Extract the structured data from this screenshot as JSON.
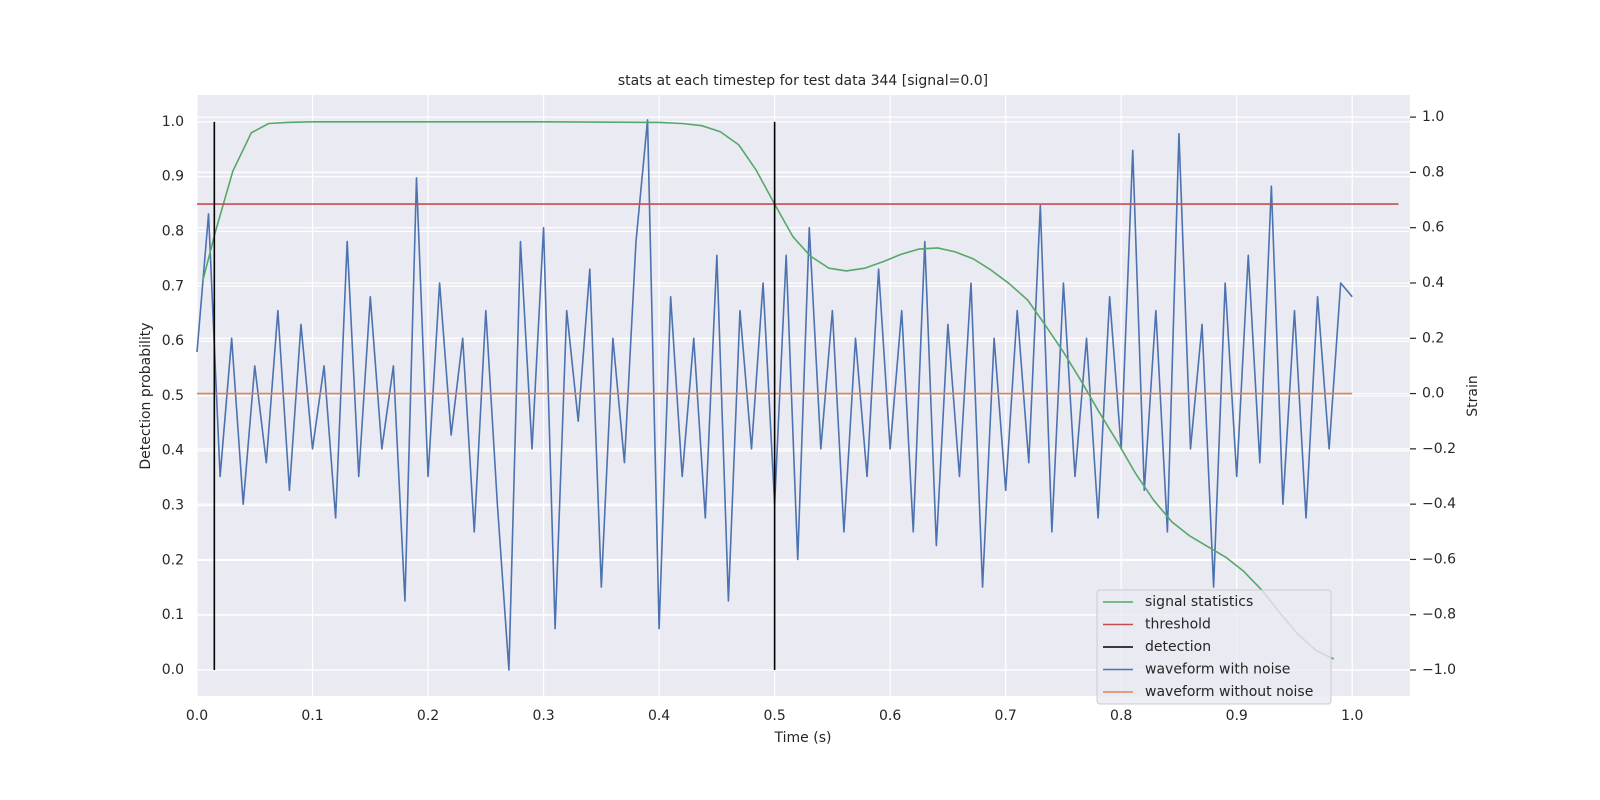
{
  "chart_data": {
    "type": "line",
    "title": "stats at each timestep for test data 344 [signal=0.0]",
    "xlabel": "Time (s)",
    "ylabel": "Detection probability",
    "y2label": "Strain",
    "xlim": [
      0,
      1.05
    ],
    "ylim": [
      -0.0475,
      1.049
    ],
    "y2lim": [
      -1.094,
      1.08
    ],
    "xticks": [
      {
        "value": 0,
        "label": "0.0"
      },
      0.1,
      0.2,
      0.3,
      0.4,
      0.5,
      0.6,
      0.7,
      0.8,
      0.9,
      {
        "value": 1,
        "label": "1.0"
      }
    ],
    "yticks": [
      {
        "value": 0,
        "label": "0.0"
      },
      0.1,
      0.2,
      0.3,
      0.4,
      0.5,
      0.6,
      0.7,
      0.8,
      0.9,
      {
        "value": 1,
        "label": "1.0"
      }
    ],
    "y2ticks": [
      {
        "value": -1,
        "label": "−1.0"
      },
      {
        "value": -0.8,
        "label": "−0.8"
      },
      {
        "value": -0.6,
        "label": "−0.6"
      },
      {
        "value": -0.4,
        "label": "−0.4"
      },
      {
        "value": -0.2,
        "label": "−0.2"
      },
      {
        "value": 0,
        "label": "0.0"
      },
      0.2,
      0.4,
      0.6,
      0.8,
      {
        "value": 1,
        "label": "1.0"
      }
    ],
    "grid": true,
    "legend": "lower right",
    "series": [
      {
        "name": "signal statistics",
        "color": "#55a868",
        "axis": "y",
        "x": [
          0.005,
          0.016,
          0.031,
          0.047,
          0.062,
          0.078,
          0.1,
          0.2,
          0.3,
          0.4,
          0.42,
          0.437,
          0.453,
          0.469,
          0.484,
          0.5,
          0.516,
          0.531,
          0.547,
          0.562,
          0.578,
          0.594,
          0.609,
          0.625,
          0.641,
          0.656,
          0.672,
          0.687,
          0.703,
          0.719,
          0.734,
          0.75,
          0.766,
          0.781,
          0.797,
          0.812,
          0.828,
          0.844,
          0.859,
          0.875,
          0.891,
          0.906,
          0.922,
          0.937,
          0.953,
          0.969,
          0.984
        ],
        "values": [
          0.71,
          0.8,
          0.91,
          0.98,
          0.997,
          0.999,
          1,
          1,
          1,
          0.999,
          0.997,
          0.993,
          0.982,
          0.958,
          0.912,
          0.85,
          0.79,
          0.755,
          0.733,
          0.728,
          0.733,
          0.745,
          0.758,
          0.768,
          0.77,
          0.763,
          0.75,
          0.73,
          0.705,
          0.675,
          0.63,
          0.58,
          0.525,
          0.47,
          0.415,
          0.36,
          0.31,
          0.27,
          0.245,
          0.225,
          0.205,
          0.18,
          0.145,
          0.105,
          0.065,
          0.035,
          0.02
        ]
      },
      {
        "name": "threshold",
        "color": "#c44e52",
        "axis": "y",
        "x": [
          0,
          1.04
        ],
        "values": [
          0.85,
          0.85
        ]
      },
      {
        "name": "detection",
        "color": "#000000",
        "axis": "y",
        "x": [
          0.015,
          0.015,
          null,
          0.5,
          0.5
        ],
        "values": [
          0,
          1,
          null,
          0,
          1
        ]
      },
      {
        "name": "waveform with noise",
        "color": "#4c72b0",
        "axis": "y2",
        "x": [
          0,
          0.01,
          0.02,
          0.03,
          0.04,
          0.05,
          0.06,
          0.07,
          0.08,
          0.09,
          0.1,
          0.11,
          0.12,
          0.13,
          0.14,
          0.15,
          0.16,
          0.17,
          0.18,
          0.19,
          0.2,
          0.21,
          0.22,
          0.23,
          0.24,
          0.25,
          0.26,
          0.27,
          0.28,
          0.29,
          0.3,
          0.31,
          0.32,
          0.33,
          0.34,
          0.35,
          0.36,
          0.37,
          0.38,
          0.39,
          0.4,
          0.41,
          0.42,
          0.43,
          0.44,
          0.45,
          0.46,
          0.47,
          0.48,
          0.49,
          0.5,
          0.51,
          0.52,
          0.53,
          0.54,
          0.55,
          0.56,
          0.57,
          0.58,
          0.59,
          0.6,
          0.61,
          0.62,
          0.63,
          0.64,
          0.65,
          0.66,
          0.67,
          0.68,
          0.69,
          0.7,
          0.71,
          0.72,
          0.73,
          0.74,
          0.75,
          0.76,
          0.77,
          0.78,
          0.79,
          0.8,
          0.81,
          0.82,
          0.83,
          0.84,
          0.85,
          0.86,
          0.87,
          0.88,
          0.89,
          0.9,
          0.91,
          0.92,
          0.93,
          0.94,
          0.95,
          0.96,
          0.97,
          0.98,
          0.99,
          1
        ],
        "values": [
          0.15,
          0.65,
          -0.3,
          0.2,
          -0.4,
          0.1,
          -0.25,
          0.3,
          -0.35,
          0.25,
          -0.2,
          0.1,
          -0.45,
          0.55,
          -0.3,
          0.35,
          -0.2,
          0.1,
          -0.75,
          0.78,
          -0.3,
          0.4,
          -0.15,
          0.2,
          -0.5,
          0.3,
          -0.4,
          -1,
          0.55,
          -0.2,
          0.6,
          -0.85,
          0.3,
          -0.1,
          0.45,
          -0.7,
          0.2,
          -0.25,
          0.55,
          0.99,
          -0.85,
          0.35,
          -0.3,
          0.2,
          -0.45,
          0.5,
          -0.75,
          0.3,
          -0.2,
          0.4,
          -0.4,
          0.5,
          -0.6,
          0.6,
          -0.2,
          0.3,
          -0.5,
          0.2,
          -0.3,
          0.45,
          -0.2,
          0.3,
          -0.5,
          0.55,
          -0.55,
          0.25,
          -0.3,
          0.4,
          -0.7,
          0.2,
          -0.35,
          0.3,
          -0.25,
          0.68,
          -0.5,
          0.4,
          -0.3,
          0.2,
          -0.45,
          0.35,
          -0.2,
          0.88,
          -0.35,
          0.3,
          -0.5,
          0.94,
          -0.2,
          0.25,
          -0.7,
          0.4,
          -0.3,
          0.5,
          -0.25,
          0.75,
          -0.4,
          0.3,
          -0.45,
          0.35,
          -0.2,
          0.4,
          0.35
        ]
      },
      {
        "name": "waveform without noise",
        "color": "#dd8452",
        "axis": "y2",
        "x": [
          0,
          1
        ],
        "values": [
          0,
          0
        ]
      }
    ]
  }
}
